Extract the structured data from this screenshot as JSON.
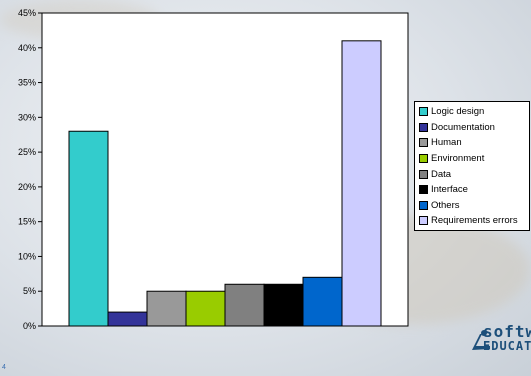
{
  "chart_data": {
    "type": "bar",
    "categories": [
      "Logic design",
      "Documentation",
      "Human",
      "Environment",
      "Data",
      "Interface",
      "Others",
      "Requirements errors"
    ],
    "values": [
      28,
      2,
      5,
      5,
      6,
      6,
      7,
      41
    ],
    "colors": [
      "#33cccc",
      "#333399",
      "#999999",
      "#99cc00",
      "#808080",
      "#000000",
      "#0066cc",
      "#ccccff"
    ],
    "ylim": [
      0,
      45
    ],
    "yticks": [
      0,
      5,
      10,
      15,
      20,
      25,
      30,
      35,
      40,
      45
    ],
    "ytick_labels": [
      "0%",
      "5%",
      "10%",
      "15%",
      "20%",
      "25%",
      "30%",
      "35%",
      "40%",
      "45%"
    ],
    "title": "",
    "xlabel": "",
    "ylabel": "",
    "grid": false,
    "legend_placement": "right",
    "plot_background": "#ffffff"
  },
  "logo": {
    "line1": "softw",
    "line2": "EDUCAT"
  },
  "page_number": "4"
}
